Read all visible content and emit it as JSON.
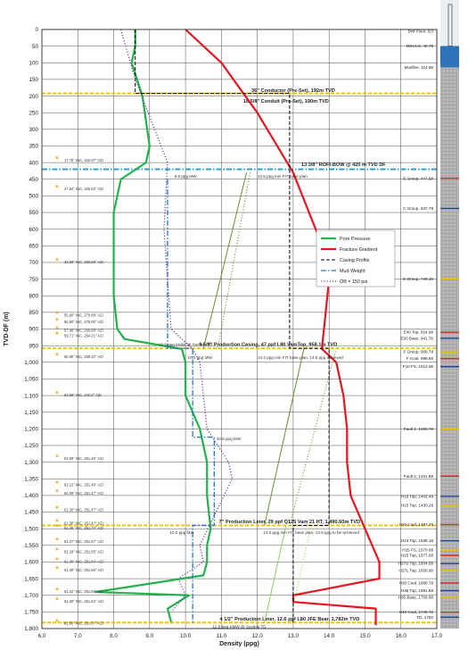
{
  "chart_data": {
    "type": "line",
    "xlabel": "Density (ppg)",
    "ylabel": "TVD-DF (m)",
    "xlim": [
      6.0,
      17.0
    ],
    "ylim": [
      1800,
      0
    ],
    "x_ticks": [
      6.0,
      7.0,
      8.0,
      9.0,
      10.0,
      11.0,
      12.0,
      13.0,
      14.0,
      15.0,
      16.0,
      17.0
    ],
    "x_tick_labels": [
      "6.0",
      "7.0",
      "8.0",
      "9.0",
      "10.0",
      "11.0",
      "12.0",
      "13.0",
      "14.0",
      "15.0",
      "16.0",
      "17.0"
    ],
    "y_ticks": [
      0,
      50,
      100,
      150,
      200,
      250,
      300,
      350,
      400,
      450,
      500,
      550,
      600,
      650,
      700,
      750,
      800,
      850,
      900,
      950,
      1000,
      1050,
      1100,
      1150,
      1200,
      1250,
      1300,
      1350,
      1400,
      1450,
      1500,
      1550,
      1600,
      1650,
      1700,
      1750,
      1800
    ],
    "y_tick_labels": [
      "0",
      "50",
      "100",
      "150",
      "200",
      "250",
      "300",
      "350",
      "400",
      "450",
      "500",
      "550",
      "600",
      "650",
      "700",
      "750",
      "800",
      "850",
      "900",
      "950",
      "1,000",
      "1,050",
      "1,100",
      "1,150",
      "1,200",
      "1,250",
      "1,300",
      "1,350",
      "1,400",
      "1,450",
      "1,500",
      "1,550",
      "1,600",
      "1,650",
      "1,700",
      "1,750",
      "1,800"
    ],
    "grid": true,
    "legend_placement": "right",
    "series": [
      {
        "name": "Pore Pressure",
        "color": "#22b14c",
        "style": "solid",
        "x": [
          8.6,
          8.6,
          8.5,
          8.8,
          9.0,
          8.9,
          8.2,
          8.0,
          8.0,
          8.0,
          8.1,
          8.3,
          9.9,
          10.0,
          10.0,
          10.4,
          10.6,
          10.6,
          10.7,
          10.6,
          10.6,
          10.5,
          7.5,
          10.1,
          9.5,
          9.6
        ],
        "y": [
          0,
          50,
          100,
          200,
          350,
          400,
          450,
          550,
          650,
          800,
          900,
          930,
          960,
          1000,
          1100,
          1200,
          1300,
          1400,
          1500,
          1550,
          1600,
          1640,
          1690,
          1700,
          1740,
          1780
        ]
      },
      {
        "name": "Fracture Gradient",
        "color": "#e8141e",
        "style": "solid",
        "x": [
          10.0,
          11.0,
          12.0,
          13.0,
          13.7,
          14.0,
          14.0,
          13.8,
          14.2,
          14.4,
          14.5,
          14.5,
          14.6,
          15.0,
          15.2,
          15.4,
          15.4,
          13.0,
          13.0,
          15.3,
          15.3
        ],
        "y": [
          0,
          100,
          250,
          430,
          620,
          700,
          750,
          960,
          1000,
          1100,
          1200,
          1300,
          1400,
          1500,
          1550,
          1600,
          1650,
          1700,
          1720,
          1740,
          1790
        ]
      },
      {
        "name": "Casing Profile",
        "color": "#000000",
        "style": "dashed",
        "x": [
          8.6,
          8.6,
          12.9,
          12.9,
          14.0,
          14.0,
          13.0,
          13.0
        ],
        "y": [
          0,
          192,
          192,
          958,
          958,
          1490,
          1490,
          1782
        ]
      },
      {
        "name": "Mud Weight",
        "color": "#1f78c8",
        "style": "dash-dot",
        "x": [
          9.5,
          9.5,
          10.2,
          10.2,
          10.8,
          10.8,
          10.2,
          10.2
        ],
        "y": [
          450,
          958,
          958,
          1225,
          1225,
          1490,
          1490,
          1782
        ]
      },
      {
        "name": "OB = 150 psi",
        "color": "#7030a0",
        "style": "dotted",
        "x": [
          8.2,
          8.6,
          9.5,
          9.4,
          9.6,
          10.2,
          10.4,
          10.5,
          10.6,
          11.2,
          11.3,
          10.4,
          10.5,
          9.8,
          10.0,
          9.6
        ],
        "y": [
          0,
          150,
          400,
          600,
          900,
          960,
          1000,
          1100,
          1200,
          1300,
          1350,
          1550,
          1600,
          1650,
          1700,
          1750
        ]
      }
    ],
    "fit_lines": [
      {
        "color": "#6a8f2a",
        "style": "solid",
        "x": [
          11.7,
          10.5
        ],
        "y": [
          430,
          958
        ]
      },
      {
        "color": "#6a8f2a",
        "style": "dotted",
        "x": [
          11.8,
          10.9
        ],
        "y": [
          430,
          958
        ]
      },
      {
        "color": "#6a8f2a",
        "style": "solid",
        "x": [
          13.3,
          12.2
        ],
        "y": [
          958,
          1490
        ]
      },
      {
        "color": "#6a8f2a",
        "style": "dotted",
        "x": [
          14.2,
          12.9
        ],
        "y": [
          958,
          1490
        ]
      },
      {
        "color": "#8bd25a",
        "style": "solid",
        "x": [
          12.8,
          12.2
        ],
        "y": [
          1490,
          1782
        ]
      },
      {
        "color": "#8bd25a",
        "style": "dotted",
        "x": [
          13.5,
          12.9
        ],
        "y": [
          1490,
          1782
        ]
      }
    ],
    "depth_lines": [
      {
        "y": 192,
        "color": "#f0c000",
        "style": "dashed",
        "label": "36\" Conductor (Pre-Set), 192m TVD",
        "label_x": 13.0,
        "label_y": 182
      },
      {
        "y": 190,
        "color": "#f0c000",
        "style": "none",
        "label": "18 5/8\" Conduit (Pre-Set), 190m TVD",
        "label_x": 12.8,
        "label_y": 215
      },
      {
        "y": 420,
        "color": "#1f9fc8",
        "style": "dash-dot",
        "label": "13 3/8\" ROFI-BOW @ 420 m TVD DF",
        "label_x": 14.4,
        "label_y": 405
      },
      {
        "y": 958,
        "color": "#f0c000",
        "style": "dashed",
        "label": "9 5/8\" Production Casing, 47 ppf L80 VamTop, 958.1m TVD",
        "label_x": 12.3,
        "label_y": 945
      },
      {
        "y": 1490,
        "color": "#f0c000",
        "style": "dashed",
        "label": "7\" Production Liner, 29 ppf Q125 Vam 21 HT, 1,490.60m TVD",
        "label_x": 12.9,
        "label_y": 1478
      },
      {
        "y": 1782,
        "color": "#f0c000",
        "style": "dashed",
        "label": "4 1/2\" Production Liner, 12.6 ppf L80 JFE Bear, 1,782m TVD",
        "label_x": 12.9,
        "label_y": 1770
      }
    ],
    "annotations": [
      {
        "text": "9.5 ppg MW",
        "x": 10.0,
        "y": 440
      },
      {
        "text": "12.5 ppg min FIT base plan",
        "x": 12.7,
        "y": 440
      },
      {
        "text": "10.5 ppg KMW @ Section TD",
        "x": 10.0,
        "y": 945
      },
      {
        "text": "10.2 ppg MW",
        "x": 10.4,
        "y": 985
      },
      {
        "text": "14.2 ppg min FIT base plan, 14.5 ppg achieved",
        "x": 13.2,
        "y": 985
      },
      {
        "text": "10.8 ppg MW",
        "x": 11.2,
        "y": 1228
      },
      {
        "text": "10.2 ppg MW",
        "x": 9.9,
        "y": 1510
      },
      {
        "text": "13.0 ppg min FIT base plan, 13.5 ppg to be achieved",
        "x": 13.5,
        "y": 1510
      },
      {
        "text": "12.8 ppg KMW @ Section TD",
        "x": 11.5,
        "y": 1793
      }
    ],
    "well_inclinations": [
      {
        "text": "17.75° INC, 342.97° AZI",
        "y": 395
      },
      {
        "text": "27.54° INC, 326.82° AZI",
        "y": 480
      },
      {
        "text": "42.59° INC, 293.69° AZI",
        "y": 700
      },
      {
        "text": "55.90° INC, 270.89° AZI",
        "y": 860
      },
      {
        "text": "55.90° INC, 270.00° AZI",
        "y": 880
      },
      {
        "text": "57.46° INC, 266.89° AZI",
        "y": 905
      },
      {
        "text": "59.71° INC, 264.21° AZI",
        "y": 922
      },
      {
        "text": "65.90° INC, 258.32° AZI",
        "y": 985
      },
      {
        "text": "63.68° INC, 243.2° AZI",
        "y": 1100
      },
      {
        "text": "63.58° INC, 251.46° AZI",
        "y": 1290
      },
      {
        "text": "63.12° INC, 251.48° AZI",
        "y": 1370
      },
      {
        "text": "64.09° INC, 251.47° AZI",
        "y": 1395
      },
      {
        "text": "61.30° INC, 251.47° AZI",
        "y": 1445
      },
      {
        "text": "61.36° INC, 251.47° AZI",
        "y": 1485
      },
      {
        "text": "61.26° INC, 251.70° AZI",
        "y": 1500
      },
      {
        "text": "61.27° INC, 251.67° AZI",
        "y": 1540
      },
      {
        "text": "61.29° INC, 251.65° AZI",
        "y": 1570
      },
      {
        "text": "61.30° INC, 251.64° AZI",
        "y": 1600
      },
      {
        "text": "61.30° INC, 251.66° AZI",
        "y": 1625
      },
      {
        "text": "61.32° INC, 251.66° AZI",
        "y": 1690
      },
      {
        "text": "61.30° INC, 251.62° AZI",
        "y": 1720
      },
      {
        "text": "61.56° INC, 251.67° AZI",
        "y": 1785
      }
    ],
    "formation_tops": [
      {
        "text": "Drill Floor, 0.0",
        "y": 6
      },
      {
        "text": "MSL/LS, 49.78",
        "y": 49.78
      },
      {
        "text": "Mudline, 114.58",
        "y": 114.58
      },
      {
        "text": "E Group, 447.58",
        "y": 447.58
      },
      {
        "text": "C Group, 537.78",
        "y": 537.78
      },
      {
        "text": "E Group, 749.18",
        "y": 749.18
      },
      {
        "text": "E40 Top, 924.98",
        "y": 910
      },
      {
        "text": "E60 Base, 941.76",
        "y": 928
      },
      {
        "text": "F Group, 968.79",
        "y": 968.79
      },
      {
        "text": "F Coal, 988.85",
        "y": 988.85
      },
      {
        "text": "F10 FS, 1012.98",
        "y": 1012.98
      },
      {
        "text": "Fault 1, 1200.78",
        "y": 1200.78
      },
      {
        "text": "Fault 2, 1341.98",
        "y": 1341.98
      },
      {
        "text": "H15 Top, 1402.48",
        "y": 1402.48
      },
      {
        "text": "H15 Top, 1430.28",
        "y": 1430.28
      },
      {
        "text": "H20 Coal, 1487.76",
        "y": 1487.76
      },
      {
        "text": "H23 Top, 1536.18",
        "y": 1536.18
      },
      {
        "text": "H25 FS, 1570.08",
        "y": 1564
      },
      {
        "text": "H25 Top, 1577.08",
        "y": 1580
      },
      {
        "text": "H27U Top, 1604.68",
        "y": 1604.68
      },
      {
        "text": "H27L Top, 1630.98",
        "y": 1625
      },
      {
        "text": "H30 Coal, 1668.78",
        "y": 1663
      },
      {
        "text": "H35 Top, 1691.58",
        "y": 1686
      },
      {
        "text": "H35 Base, 1709.88",
        "y": 1706
      },
      {
        "text": "H40 Coal, 1749.78",
        "y": 1751
      },
      {
        "text": "TD, 1782",
        "y": 1766
      }
    ]
  }
}
